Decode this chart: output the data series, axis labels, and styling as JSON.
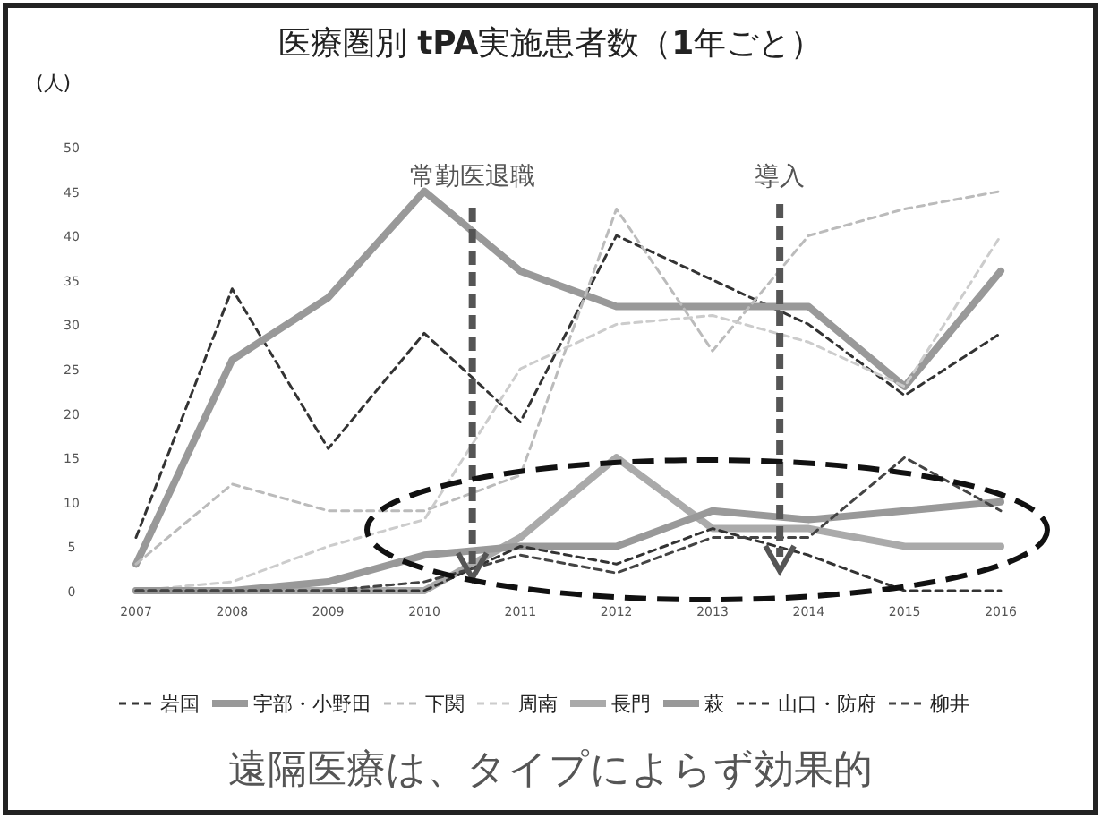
{
  "chart_data": {
    "type": "line",
    "title": "医療圏別 **tPA**実施患者数（**1**年ごと）",
    "ylabel": "(人)",
    "categories": [
      "2007",
      "2008",
      "2009",
      "2010",
      "2011",
      "2012",
      "2013",
      "2014",
      "2015",
      "2016"
    ],
    "ylim": [
      0,
      50
    ],
    "yticks": [
      0,
      5,
      10,
      15,
      20,
      25,
      30,
      35,
      40,
      45,
      50
    ],
    "grid": false,
    "legend": "bottom",
    "marker": "none",
    "series": [
      {
        "name": "岩国",
        "color": "#333333",
        "line_style": "dashed",
        "values": [
          6,
          34,
          16,
          29,
          19,
          40,
          35,
          30,
          22,
          29
        ]
      },
      {
        "name": "宇部・小野田",
        "color": "#999999",
        "line_style": "solid",
        "values": [
          3,
          26,
          33,
          45,
          36,
          32,
          32,
          32,
          23,
          36
        ]
      },
      {
        "name": "下関",
        "color": "#bbbbbb",
        "line_style": "dashed",
        "values": [
          3,
          12,
          9,
          9,
          13,
          43,
          27,
          40,
          43,
          45
        ]
      },
      {
        "name": "周南",
        "color": "#cccccc",
        "line_style": "dashed",
        "values": [
          0,
          1,
          5,
          8,
          25,
          30,
          31,
          28,
          23,
          40
        ]
      },
      {
        "name": "長門",
        "color": "#aaaaaa",
        "line_style": "solid",
        "values": [
          0,
          0,
          0,
          0,
          6,
          15,
          7,
          7,
          5,
          5
        ]
      },
      {
        "name": "萩",
        "color": "#999999",
        "line_style": "solid",
        "values": [
          0,
          0,
          1,
          4,
          5,
          5,
          9,
          8,
          9,
          10
        ]
      },
      {
        "name": "山口・防府",
        "color": "#333333",
        "line_style": "dashed",
        "values": [
          0,
          0,
          0,
          0,
          5,
          3,
          7,
          4,
          0,
          0
        ]
      },
      {
        "name": "柳井",
        "color": "#444444",
        "line_style": "dashed",
        "values": [
          0,
          0,
          0,
          1,
          4,
          2,
          6,
          6,
          15,
          9
        ]
      }
    ],
    "annotations": [
      "常勤医退職",
      "導入",
      "遠隔医療は、タイプによらず効果的"
    ]
  }
}
